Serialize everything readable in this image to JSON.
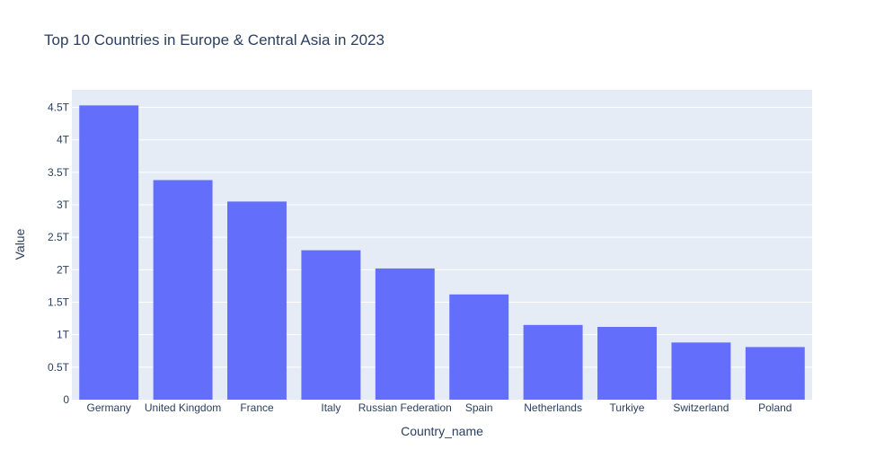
{
  "chart_data": {
    "type": "bar",
    "title": "Top 10 Countries in Europe & Central Asia in 2023",
    "xlabel": "Country_name",
    "ylabel": "Value",
    "categories": [
      "Germany",
      "United Kingdom",
      "France",
      "Italy",
      "Russian Federation",
      "Spain",
      "Netherlands",
      "Turkiye",
      "Switzerland",
      "Poland"
    ],
    "values": [
      4530000000000.0,
      3380000000000.0,
      3050000000000.0,
      2300000000000.0,
      2020000000000.0,
      1620000000000.0,
      1150000000000.0,
      1120000000000.0,
      880000000000.0,
      810000000000.0
    ],
    "ylim": [
      0,
      4770000000000.0
    ],
    "yticks": [
      0,
      500000000000.0,
      1000000000000.0,
      1500000000000.0,
      2000000000000.0,
      2500000000000.0,
      3000000000000.0,
      3500000000000.0,
      4000000000000.0,
      4500000000000.0
    ],
    "ytick_labels": [
      "0",
      "0.5T",
      "1T",
      "1.5T",
      "2T",
      "2.5T",
      "3T",
      "3.5T",
      "4T",
      "4.5T"
    ],
    "grid": true,
    "colors": {
      "bar": "#636efa",
      "plot_bg": "#e5ecf6",
      "grid": "#ffffff",
      "text": "#2a3f5f"
    }
  }
}
